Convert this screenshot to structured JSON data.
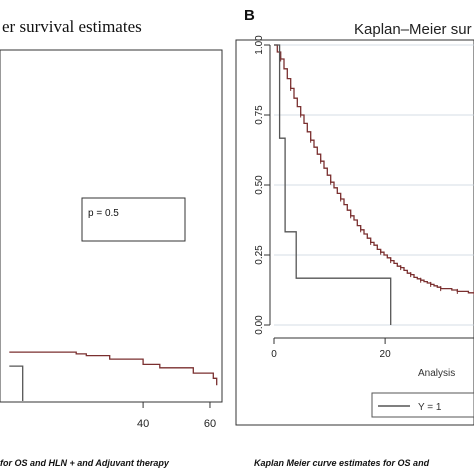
{
  "panel_a": {
    "title": "er survival estimates",
    "pvalue_text": "p = 0.5",
    "caption": "for OS and HLN +  and Adjuvant therapy"
  },
  "panel_b": {
    "letter": "B",
    "title": "Kaplan–Meier sur",
    "xlabel": "Analysis",
    "legend_text": "Y = 1",
    "caption": "Kaplan Meier curve estimates for OS and"
  },
  "colors": {
    "curve_brown": "#7a2f2f",
    "curve_gray": "#555555",
    "frame": "#333333",
    "grid": "#c9d3dc"
  },
  "chart_data": [
    {
      "type": "line",
      "panel": "A",
      "title": "er survival estimates",
      "xticks": [
        40,
        60
      ],
      "xlim": [
        -1,
        63
      ],
      "ylim": [
        0,
        1
      ],
      "annotation": "p = 0.5",
      "series": [
        {
          "color": "#7a2f2f",
          "step": true,
          "x": [
            0,
            13,
            20,
            23,
            30,
            40,
            45,
            55,
            61,
            62
          ],
          "y": [
            0.14,
            0.14,
            0.135,
            0.13,
            0.12,
            0.105,
            0.095,
            0.08,
            0.065,
            0.045
          ]
        },
        {
          "color": "#555555",
          "step": true,
          "x": [
            0,
            4,
            4
          ],
          "y": [
            0.1,
            0.1,
            0.0
          ]
        }
      ]
    },
    {
      "type": "line",
      "panel": "B",
      "title": "Kaplan–Meier sur",
      "xlabel": "Analysis",
      "xticks": [
        0,
        20
      ],
      "yticks": [
        "0.00",
        "0.25",
        "0.50",
        "0.75",
        "1.00"
      ],
      "xlim": [
        -2,
        38
      ],
      "ylim": [
        0,
        1
      ],
      "legend": [
        "Y = 1"
      ],
      "series": [
        {
          "color": "#7a2f2f",
          "step": true,
          "x": [
            0,
            0.6,
            1.2,
            1.8,
            2.4,
            3.0,
            3.6,
            4.2,
            4.8,
            5.4,
            6.0,
            6.6,
            7.2,
            7.8,
            8.4,
            9.0,
            9.6,
            10.2,
            10.8,
            11.4,
            12.0,
            12.6,
            13.2,
            13.8,
            14.4,
            15.0,
            15.6,
            16.2,
            16.8,
            17.4,
            18.0,
            18.6,
            19.2,
            19.8,
            20.4,
            21.0,
            21.6,
            22.2,
            22.8,
            23.4,
            24.0,
            24.6,
            25.2,
            25.8,
            26.4,
            27.0,
            27.6,
            28.2,
            28.8,
            29.4,
            30.0,
            31.0,
            32.0,
            33.0,
            34.0,
            35.0,
            36.0
          ],
          "y": [
            1.0,
            0.975,
            0.95,
            0.915,
            0.88,
            0.845,
            0.81,
            0.78,
            0.75,
            0.72,
            0.69,
            0.66,
            0.635,
            0.61,
            0.585,
            0.56,
            0.535,
            0.51,
            0.49,
            0.47,
            0.45,
            0.43,
            0.41,
            0.39,
            0.375,
            0.355,
            0.34,
            0.325,
            0.31,
            0.295,
            0.285,
            0.27,
            0.26,
            0.25,
            0.24,
            0.23,
            0.22,
            0.21,
            0.205,
            0.195,
            0.185,
            0.18,
            0.17,
            0.165,
            0.16,
            0.155,
            0.15,
            0.145,
            0.14,
            0.135,
            0.13,
            0.13,
            0.125,
            0.12,
            0.12,
            0.115,
            0.115
          ]
        },
        {
          "color": "#555555",
          "step": true,
          "x": [
            0,
            1,
            1,
            2,
            2,
            4,
            4,
            5,
            5,
            13,
            13,
            21,
            21
          ],
          "y": [
            1.0,
            1.0,
            0.667,
            0.667,
            0.333,
            0.333,
            0.167,
            0.167,
            0.167,
            0.167,
            0.167,
            0.167,
            0.0
          ]
        }
      ]
    }
  ]
}
